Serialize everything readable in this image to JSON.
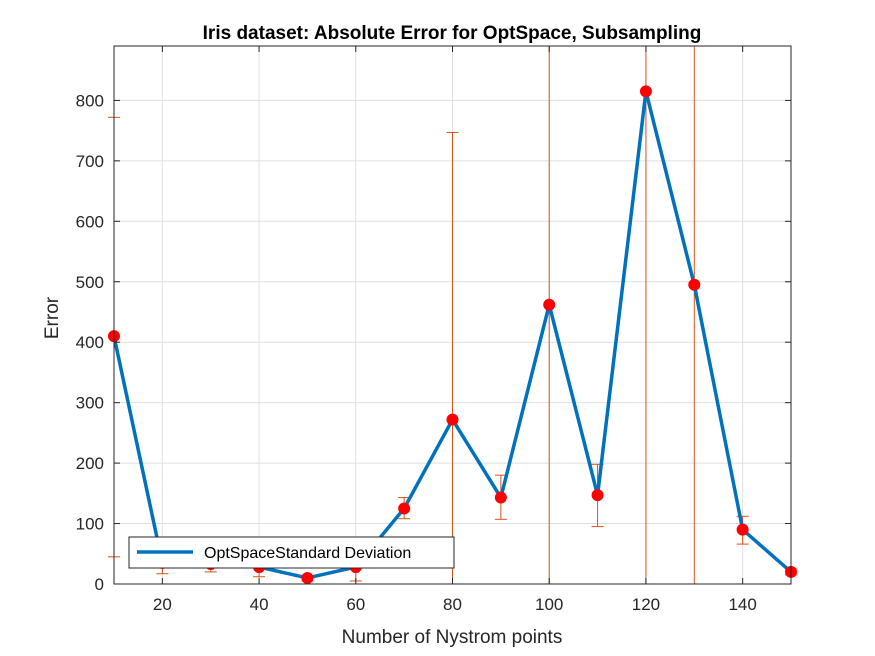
{
  "chart_data": {
    "type": "line",
    "title": "Iris dataset: Absolute Error for OptSpace, Subsampling",
    "xlabel": "Number of Nystrom points",
    "ylabel": "Error",
    "xlim": [
      10,
      150
    ],
    "ylim": [
      0,
      890
    ],
    "xticks": [
      20,
      40,
      60,
      80,
      100,
      120,
      140
    ],
    "yticks": [
      0,
      100,
      200,
      300,
      400,
      500,
      600,
      700,
      800
    ],
    "grid": true,
    "legend": {
      "placement": "bottom-left",
      "entries": [
        "OptSpaceStandard Deviation"
      ]
    },
    "colors": {
      "line": "#0072bd",
      "marker": "#ff0000",
      "errorbar": "#d95319",
      "grid": "#dfdfdf",
      "axis": "#262626"
    },
    "x": [
      10,
      20,
      30,
      40,
      50,
      60,
      70,
      80,
      90,
      100,
      110,
      120,
      130,
      140,
      150
    ],
    "series": [
      {
        "name": "OptSpaceStandard Deviation",
        "values": [
          410,
          35,
          33,
          28,
          10,
          28,
          125,
          272,
          143,
          462,
          147,
          815,
          495,
          90,
          20
        ],
        "err_low": [
          45,
          17,
          20,
          12,
          5,
          5,
          108,
          0,
          107,
          0,
          95,
          0,
          0,
          66,
          15
        ],
        "err_high": [
          772,
          45,
          40,
          35,
          12,
          45,
          143,
          747,
          180,
          890,
          198,
          890,
          890,
          112,
          25
        ]
      }
    ]
  }
}
